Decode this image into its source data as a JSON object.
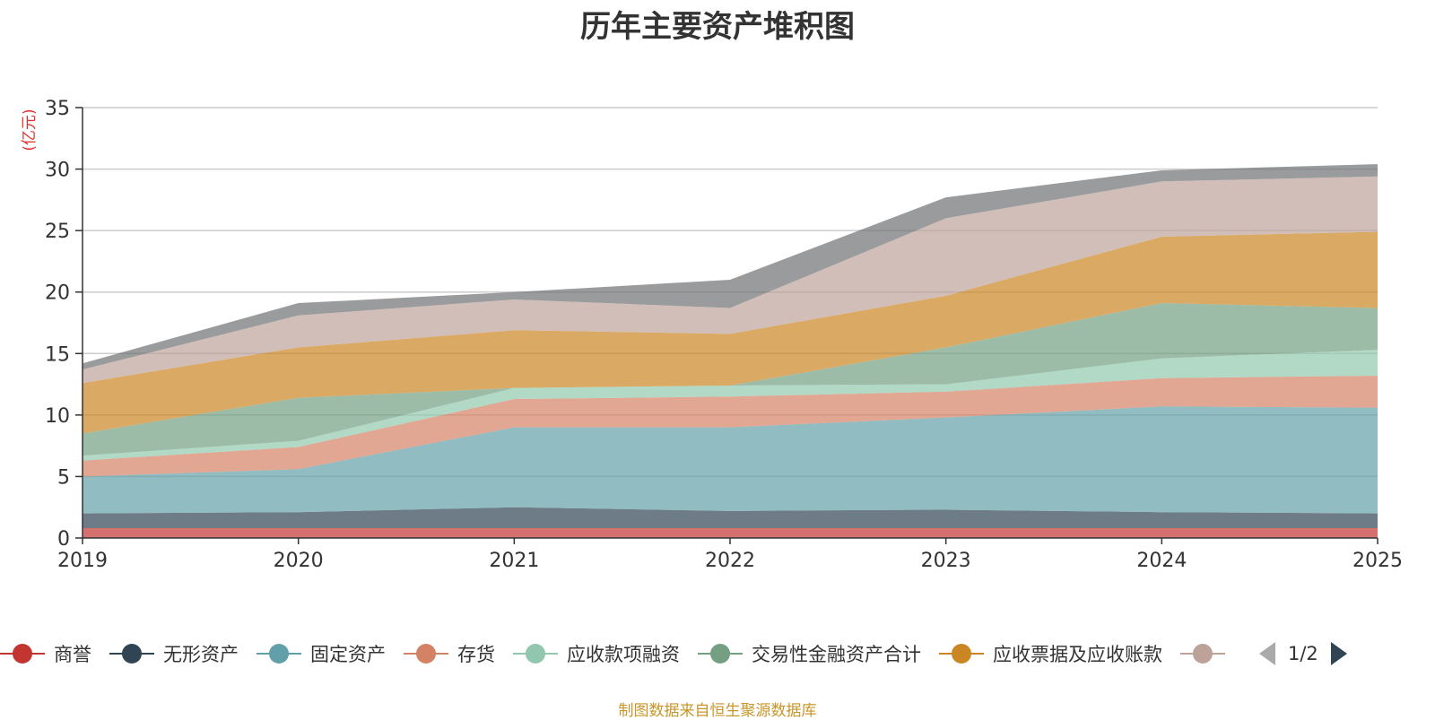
{
  "chart_data": {
    "type": "area",
    "stacked": true,
    "title": "历年主要资产堆积图",
    "ylabel": "(亿元)",
    "xlabel": "",
    "x": [
      "2019",
      "2020",
      "2021",
      "2022",
      "2023",
      "2024",
      "2025"
    ],
    "ylim": [
      0,
      35
    ],
    "yticks": [
      0,
      5,
      10,
      15,
      20,
      25,
      30,
      35
    ],
    "grid": true,
    "legend_position": "bottom",
    "series": [
      {
        "name": "商誉",
        "color": "#c23531",
        "values": [
          0.8,
          0.8,
          0.8,
          0.8,
          0.8,
          0.8,
          0.8
        ]
      },
      {
        "name": "无形资产",
        "color": "#2f4554",
        "values": [
          1.2,
          1.3,
          1.7,
          1.4,
          1.5,
          1.3,
          1.2
        ]
      },
      {
        "name": "固定资产",
        "color": "#61a0a8",
        "values": [
          3.0,
          3.5,
          6.5,
          6.8,
          7.5,
          8.6,
          8.6
        ]
      },
      {
        "name": "存货",
        "color": "#d48265",
        "values": [
          1.3,
          1.8,
          2.3,
          2.5,
          2.1,
          2.3,
          2.6
        ]
      },
      {
        "name": "应收款项融资",
        "color": "#91c7ae",
        "values": [
          0.4,
          0.5,
          0.9,
          0.9,
          0.6,
          1.6,
          2.1
        ]
      },
      {
        "name": "交易性金融资产合计",
        "color": "#749f83",
        "values": [
          1.8,
          3.5,
          0,
          0,
          3.0,
          4.5,
          3.4
        ]
      },
      {
        "name": "应收票据及应收账款",
        "color": "#ca8622",
        "values": [
          4.1,
          4.1,
          4.7,
          4.2,
          4.2,
          5.4,
          6.2
        ]
      },
      {
        "name": "",
        "color": "#bda29a",
        "values": [
          1.1,
          2.6,
          2.5,
          2.1,
          6.3,
          4.5,
          4.5
        ]
      },
      {
        "name": "",
        "color": "#6e7074",
        "values": [
          0.5,
          1.0,
          0.6,
          2.3,
          1.7,
          0.9,
          1.0
        ]
      }
    ]
  },
  "legend": {
    "page_indicator": "1/2"
  },
  "footer": "制图数据来自恒生聚源数据库"
}
